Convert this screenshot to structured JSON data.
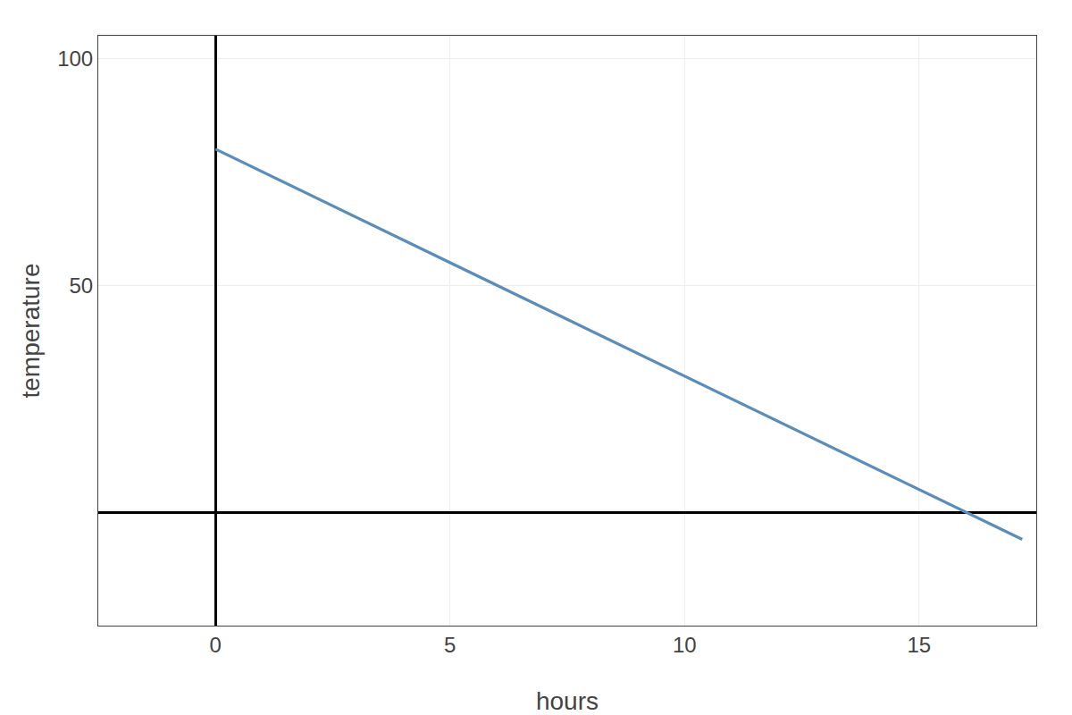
{
  "chart_data": {
    "type": "line",
    "xlabel": "hours",
    "ylabel": "temperature",
    "x": [
      0,
      17.2
    ],
    "values": [
      80,
      -6
    ],
    "color": "#5b8db8",
    "xlim": [
      -2.5,
      17.5
    ],
    "ylim": [
      -25,
      105
    ],
    "xticks": [
      0,
      5,
      10,
      15
    ],
    "yticks": [
      50,
      100
    ],
    "grid": true
  }
}
